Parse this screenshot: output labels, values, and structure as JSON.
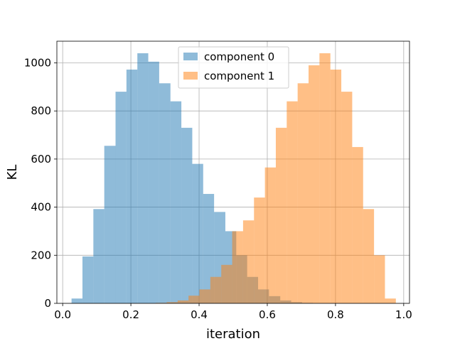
{
  "chart_data": {
    "type": "bar",
    "title": "",
    "xlabel": "iteration",
    "ylabel": "KL",
    "xlim": [
      -0.017,
      1.017
    ],
    "ylim": [
      0,
      1090
    ],
    "xticks": [
      0.0,
      0.2,
      0.4,
      0.6,
      0.8,
      1.0
    ],
    "xtick_labels": [
      "0.0",
      "0.2",
      "0.4",
      "0.6",
      "0.8",
      "1.0"
    ],
    "yticks": [
      0,
      200,
      400,
      600,
      800,
      1000
    ],
    "ytick_labels": [
      "0",
      "200",
      "400",
      "600",
      "800",
      "1000"
    ],
    "grid": true,
    "legend_position": "top-center",
    "series": [
      {
        "name": "component 0",
        "color": "#1f77b4",
        "opacity": 0.5,
        "bins": [
          [
            0.026,
            0.058,
            20
          ],
          [
            0.058,
            0.09,
            195
          ],
          [
            0.09,
            0.122,
            392
          ],
          [
            0.122,
            0.155,
            655
          ],
          [
            0.155,
            0.187,
            880
          ],
          [
            0.187,
            0.219,
            972
          ],
          [
            0.219,
            0.251,
            1040
          ],
          [
            0.251,
            0.283,
            1005
          ],
          [
            0.283,
            0.316,
            915
          ],
          [
            0.316,
            0.348,
            840
          ],
          [
            0.348,
            0.38,
            730
          ],
          [
            0.38,
            0.412,
            580
          ],
          [
            0.412,
            0.444,
            455
          ],
          [
            0.444,
            0.477,
            380
          ],
          [
            0.477,
            0.509,
            300
          ],
          [
            0.509,
            0.541,
            200
          ],
          [
            0.541,
            0.573,
            110
          ],
          [
            0.573,
            0.605,
            58
          ],
          [
            0.605,
            0.638,
            30
          ],
          [
            0.638,
            0.67,
            12
          ],
          [
            0.67,
            0.702,
            5
          ],
          [
            0.702,
            0.734,
            2
          ]
        ]
      },
      {
        "name": "component 1",
        "color": "#ff7f0e",
        "opacity": 0.5,
        "bins": [
          [
            0.273,
            0.305,
            2
          ],
          [
            0.305,
            0.337,
            5
          ],
          [
            0.337,
            0.369,
            12
          ],
          [
            0.369,
            0.401,
            32
          ],
          [
            0.401,
            0.433,
            58
          ],
          [
            0.433,
            0.465,
            110
          ],
          [
            0.465,
            0.497,
            160
          ],
          [
            0.497,
            0.529,
            300
          ],
          [
            0.529,
            0.561,
            345
          ],
          [
            0.561,
            0.593,
            440
          ],
          [
            0.593,
            0.625,
            565
          ],
          [
            0.625,
            0.657,
            730
          ],
          [
            0.657,
            0.689,
            840
          ],
          [
            0.689,
            0.721,
            915
          ],
          [
            0.721,
            0.753,
            990
          ],
          [
            0.753,
            0.785,
            1040
          ],
          [
            0.785,
            0.817,
            972
          ],
          [
            0.817,
            0.849,
            880
          ],
          [
            0.849,
            0.881,
            650
          ],
          [
            0.881,
            0.913,
            392
          ],
          [
            0.913,
            0.945,
            200
          ],
          [
            0.945,
            0.977,
            20
          ]
        ]
      }
    ]
  }
}
